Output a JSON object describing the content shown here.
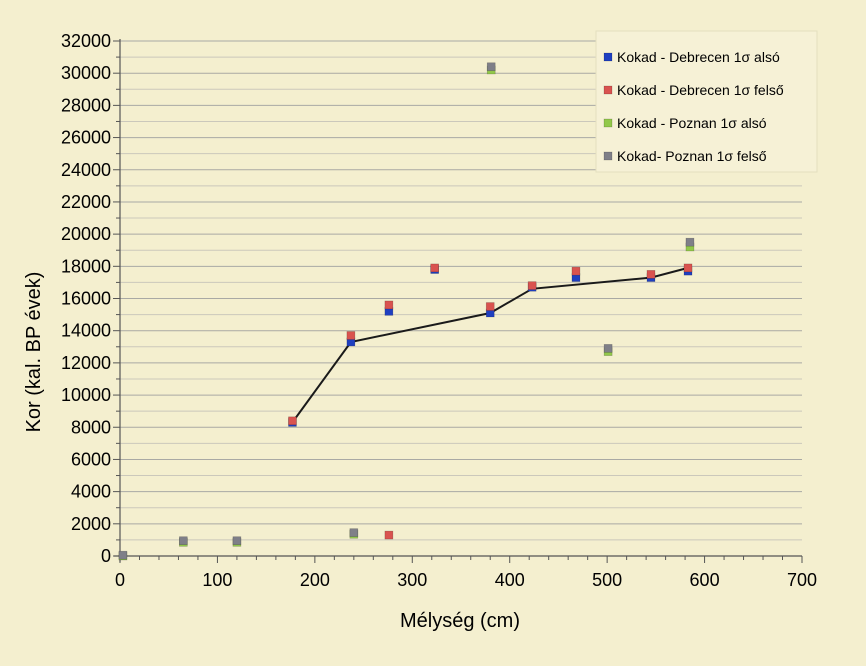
{
  "chart_data": {
    "type": "scatter",
    "title": "",
    "xlabel": "Mélység (cm)",
    "ylabel": "Kor (kal. BP évek)",
    "xlim": [
      0,
      700
    ],
    "ylim": [
      0,
      32000
    ],
    "x_ticks": [
      0,
      100,
      200,
      300,
      400,
      500,
      600,
      700
    ],
    "y_ticks": [
      0,
      2000,
      4000,
      6000,
      8000,
      10000,
      12000,
      14000,
      16000,
      18000,
      20000,
      22000,
      24000,
      26000,
      28000,
      30000,
      32000
    ],
    "x_tick_labels": [
      "0",
      "100",
      "200",
      "300",
      "400",
      "500",
      "600",
      "700"
    ],
    "y_tick_labels": [
      "0",
      "2000",
      "4000",
      "6000",
      "8000",
      "10000",
      "12000",
      "14000",
      "16000",
      "18000",
      "20000",
      "22000",
      "24000",
      "26000",
      "28000",
      "30000",
      "32000"
    ],
    "grid": true,
    "legend_position": "top-right",
    "series": [
      {
        "name": "Kokad - Debrecen 1σ alsó",
        "color": "#1f3fc0",
        "marker": "square",
        "x": [
          177,
          237,
          276,
          323,
          380,
          423,
          468,
          545,
          583
        ],
        "y": [
          8300,
          13300,
          15200,
          17800,
          15100,
          16700,
          17300,
          17300,
          17700
        ]
      },
      {
        "name": "Kokad - Debrecen 1σ felső",
        "color": "#d9534f",
        "marker": "square",
        "x": [
          177,
          237,
          276,
          276,
          323,
          380,
          423,
          468,
          545,
          583
        ],
        "y": [
          8400,
          13700,
          15600,
          1300,
          17900,
          15500,
          16800,
          17700,
          17500,
          17900
        ]
      },
      {
        "name": "Kokad -  Poznan 1σ alsó",
        "color": "#92c84a",
        "marker": "square",
        "x": [
          3,
          65,
          120,
          240,
          381,
          501,
          585
        ],
        "y": [
          0,
          850,
          850,
          1350,
          30200,
          12700,
          19200
        ]
      },
      {
        "name": "Kokad-    Poznan 1σ felső",
        "color": "#7f7f88",
        "marker": "square",
        "x": [
          3,
          65,
          120,
          240,
          381,
          501,
          585
        ],
        "y": [
          50,
          950,
          950,
          1450,
          30400,
          12900,
          19500
        ]
      }
    ],
    "age_model_line": {
      "color": "#1a1a1a",
      "x": [
        177,
        237,
        380,
        423,
        545,
        583
      ],
      "y": [
        8300,
        13300,
        15100,
        16600,
        17300,
        17900
      ]
    }
  }
}
